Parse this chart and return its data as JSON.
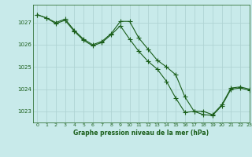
{
  "title": "Graphe pression niveau de la mer (hPa)",
  "background_color": "#c8eaea",
  "grid_color": "#b0d4d4",
  "line_color": "#1a5e1a",
  "xlim": [
    -0.5,
    23
  ],
  "ylim": [
    1022.5,
    1027.8
  ],
  "yticks": [
    1023,
    1024,
    1025,
    1026,
    1027
  ],
  "xticks": [
    0,
    1,
    2,
    3,
    4,
    5,
    6,
    7,
    8,
    9,
    10,
    11,
    12,
    13,
    14,
    15,
    16,
    17,
    18,
    19,
    20,
    21,
    22,
    23
  ],
  "series1_x": [
    0,
    1,
    2,
    3,
    4,
    5,
    6,
    7,
    8,
    9,
    10,
    11,
    12,
    13,
    14,
    15,
    16,
    17,
    18,
    19,
    20,
    21,
    22,
    23
  ],
  "series1_y": [
    1027.35,
    1027.2,
    1027.0,
    1027.15,
    1026.65,
    1026.25,
    1026.0,
    1026.15,
    1026.5,
    1027.05,
    1027.05,
    1026.3,
    1025.8,
    1025.3,
    1025.0,
    1024.65,
    1023.65,
    1023.0,
    1023.0,
    1022.85,
    1023.3,
    1024.05,
    1024.1,
    1024.0
  ],
  "series2_x": [
    0,
    1,
    2,
    3,
    4,
    5,
    6,
    7,
    8,
    9,
    10,
    11,
    12,
    13,
    14,
    15,
    16,
    17,
    18,
    19,
    20,
    21,
    22,
    23
  ],
  "series2_y": [
    1027.35,
    1027.2,
    1026.95,
    1027.1,
    1026.6,
    1026.2,
    1025.95,
    1026.1,
    1026.45,
    1026.85,
    1026.25,
    1025.7,
    1025.25,
    1024.9,
    1024.35,
    1023.6,
    1022.95,
    1023.0,
    1022.85,
    1022.82,
    1023.25,
    1024.0,
    1024.05,
    1023.95
  ]
}
